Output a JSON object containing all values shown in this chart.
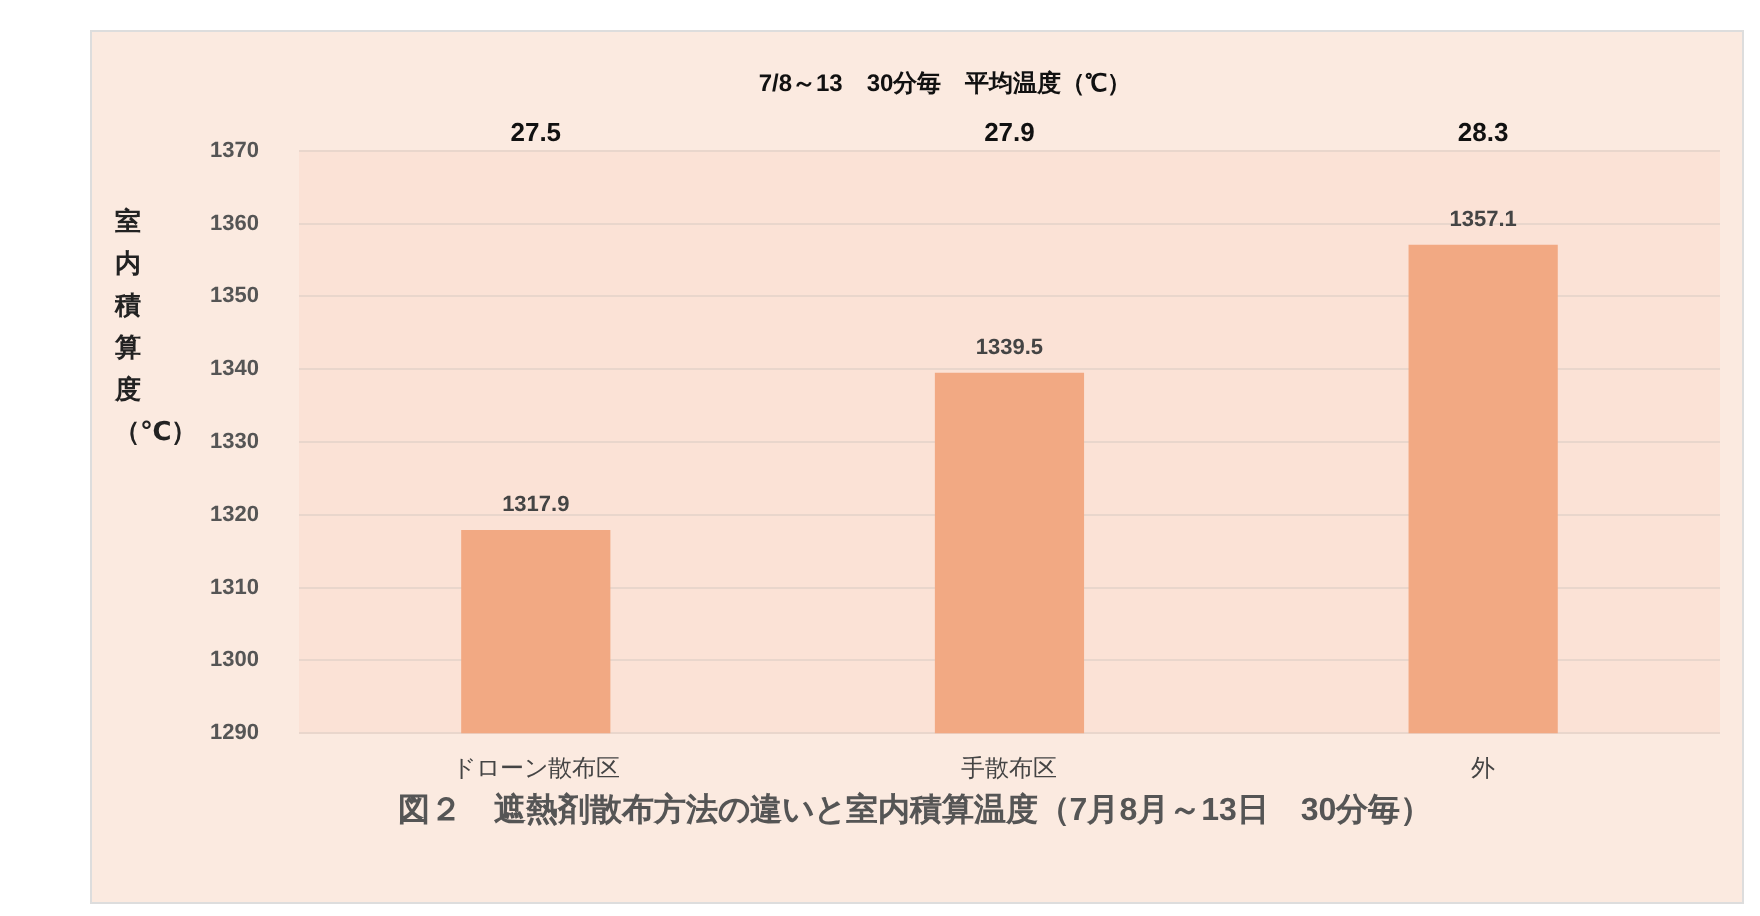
{
  "chart_data": {
    "type": "bar",
    "title": "7/8～13　30分毎　平均温度（℃）",
    "ylabel": "室内積算度（℃）",
    "categories": [
      "ドローン散布区",
      "手散布区",
      "外"
    ],
    "values": [
      1317.9,
      1339.5,
      1357.1
    ],
    "color": "#f2a983",
    "ylim": [
      1290,
      1370
    ],
    "yticks": [
      1290,
      1300,
      1310,
      1320,
      1330,
      1340,
      1350,
      1360,
      1370
    ],
    "grid": "y",
    "data_labels": true,
    "legend": false,
    "annotations": [
      "27.5",
      "27.9",
      "28.3",
      "図２　遮熱剤散布方法の違いと室内積算温度（7月8月～13日　30分毎）"
    ]
  }
}
